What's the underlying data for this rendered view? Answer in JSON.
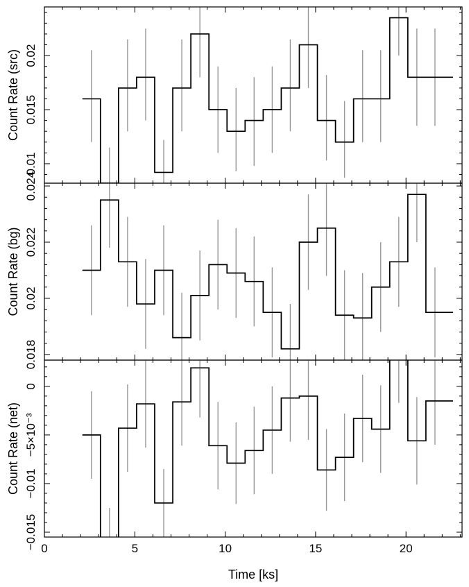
{
  "chart_data": [
    {
      "type": "line",
      "step": true,
      "error_bars": true,
      "panel": "src",
      "ylabel": "Count Rate (src)",
      "xlim": [
        0,
        23.1
      ],
      "ylim": [
        0.0082,
        0.0245
      ],
      "yticks": [
        0.01,
        0.015,
        0.02
      ],
      "ytick_labels": [
        "0.01",
        "0.015",
        "0.02"
      ],
      "x": [
        2.1,
        3.1,
        4.1,
        5.1,
        6.1,
        7.1,
        8.1,
        9.1,
        10.1,
        11.1,
        12.1,
        13.1,
        14.1,
        15.1,
        16.1,
        17.1,
        18.1,
        19.1,
        20.1,
        21.1,
        22.1
      ],
      "y": [
        0.016,
        0.0082,
        0.017,
        0.018,
        0.0092,
        0.017,
        0.022,
        0.015,
        0.013,
        0.014,
        0.015,
        0.017,
        0.021,
        0.014,
        0.012,
        0.016,
        0.016,
        0.0235,
        0.018,
        0.018,
        0.018
      ],
      "err_low": [
        0.012,
        0.005,
        0.013,
        0.014,
        0.0061,
        0.013,
        0.018,
        0.011,
        0.0093,
        0.0098,
        0.011,
        0.013,
        0.017,
        0.0103,
        0.0087,
        0.012,
        0.012,
        0.02,
        0.0135,
        0.0135,
        0.014
      ],
      "err_high": [
        0.0205,
        0.0115,
        0.0215,
        0.0225,
        0.0122,
        0.0215,
        0.026,
        0.019,
        0.017,
        0.018,
        0.019,
        0.0215,
        0.025,
        0.0182,
        0.0158,
        0.0205,
        0.0205,
        0.027,
        0.0225,
        0.0225,
        0.0225
      ]
    },
    {
      "type": "line",
      "step": true,
      "error_bars": true,
      "panel": "bg",
      "ylabel": "Count Rate (bg)",
      "xlim": [
        0,
        23.1
      ],
      "ylim": [
        0.0178,
        0.0241
      ],
      "yticks": [
        0.018,
        0.02,
        0.022,
        0.024
      ],
      "ytick_labels": [
        "0.018",
        "0.02",
        "0.022",
        "0.024"
      ],
      "x": [
        2.1,
        3.1,
        4.1,
        5.1,
        6.1,
        7.1,
        8.1,
        9.1,
        10.1,
        11.1,
        12.1,
        13.1,
        14.1,
        15.1,
        16.1,
        17.1,
        18.1,
        19.1,
        20.1,
        21.1,
        22.1
      ],
      "y": [
        0.021,
        0.0235,
        0.0213,
        0.0198,
        0.021,
        0.0186,
        0.0201,
        0.0212,
        0.0209,
        0.0206,
        0.0195,
        0.0182,
        0.022,
        0.0225,
        0.0194,
        0.0193,
        0.0204,
        0.0213,
        0.0237,
        0.0195,
        0.0195
      ],
      "err_low": [
        0.0194,
        0.0218,
        0.0197,
        0.0182,
        0.0194,
        0.017,
        0.0185,
        0.0196,
        0.0193,
        0.019,
        0.0179,
        0.0166,
        0.0203,
        0.0208,
        0.0178,
        0.0177,
        0.0188,
        0.0197,
        0.022,
        0.0179,
        0.0179
      ],
      "err_high": [
        0.0226,
        0.0252,
        0.0229,
        0.0214,
        0.0226,
        0.0202,
        0.0217,
        0.0228,
        0.0225,
        0.0222,
        0.0211,
        0.0198,
        0.0237,
        0.0242,
        0.021,
        0.0209,
        0.022,
        0.0229,
        0.0254,
        0.0211,
        0.0211
      ]
    },
    {
      "type": "line",
      "step": true,
      "error_bars": true,
      "panel": "net",
      "ylabel": "Count Rate (net)",
      "xlabel": "Time [ks]",
      "xlim": [
        0,
        23.1
      ],
      "xticks": [
        0,
        5,
        10,
        15,
        20
      ],
      "xtick_labels": [
        "0",
        "5",
        "10",
        "15",
        "20"
      ],
      "ylim": [
        -0.0155,
        0.0027
      ],
      "yticks": [
        -0.015,
        -0.01,
        -0.005,
        0
      ],
      "ytick_labels": [
        "−0.015",
        "−0.01",
        "−5×10⁻³",
        "0"
      ],
      "x": [
        2.1,
        3.1,
        4.1,
        5.1,
        6.1,
        7.1,
        8.1,
        9.1,
        10.1,
        11.1,
        12.1,
        13.1,
        14.1,
        15.1,
        16.1,
        17.1,
        18.1,
        19.1,
        20.1,
        21.1,
        22.1
      ],
      "y": [
        -0.005,
        -0.0175,
        -0.0043,
        -0.0018,
        -0.012,
        -0.0016,
        0.0019,
        -0.0061,
        -0.0079,
        -0.0066,
        -0.0045,
        -0.0012,
        -0.001,
        -0.0086,
        -0.0073,
        -0.0033,
        -0.0044,
        0.0028,
        -0.0056,
        -0.0015,
        -0.0015
      ],
      "err_low": [
        -0.0095,
        -0.0215,
        -0.0088,
        -0.0063,
        -0.0155,
        -0.0061,
        -0.0032,
        -0.0106,
        -0.0121,
        -0.0111,
        -0.009,
        -0.0057,
        -0.0055,
        -0.0128,
        -0.0118,
        -0.0078,
        -0.0089,
        -0.0017,
        -0.0101,
        -0.006,
        -0.006
      ],
      "err_high": [
        -0.0005,
        -0.0125,
        0.0002,
        0.0027,
        -0.0085,
        0.0029,
        0.0064,
        -0.0016,
        -0.0037,
        -0.0021,
        0.0,
        0.0033,
        0.0035,
        -0.0044,
        -0.0028,
        0.0012,
        0.0001,
        0.0073,
        -0.0011,
        0.003,
        0.003
      ]
    }
  ]
}
